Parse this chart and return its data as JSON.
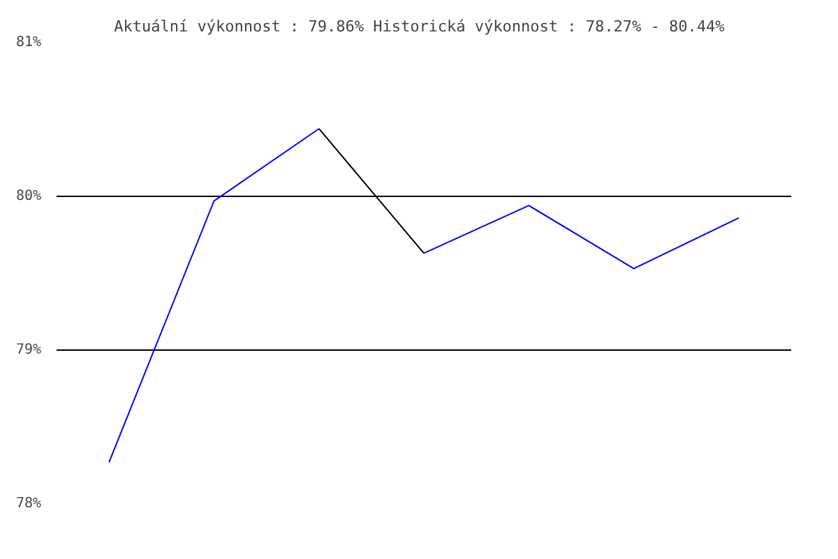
{
  "chart_data": {
    "type": "line",
    "title": "Aktuální výkonnost : 79.86%  Historická výkonnost : 78.27% - 80.44%",
    "categories": [
      null,
      null,
      null,
      null,
      null,
      null,
      null
    ],
    "series": [
      {
        "color": "#0000ff",
        "values": [
          78.27,
          79.97,
          80.44,
          null,
          null,
          null,
          null
        ]
      },
      {
        "color": "#000000",
        "values": [
          null,
          null,
          80.44,
          79.63,
          null,
          null,
          null
        ]
      },
      {
        "color": "#0000ff",
        "values": [
          null,
          null,
          null,
          79.63,
          79.94,
          79.53,
          79.86
        ]
      }
    ],
    "ylim": [
      78,
      81
    ],
    "yticks": [
      {
        "value": 78,
        "label": "78%"
      },
      {
        "value": 79,
        "label": "79%"
      },
      {
        "value": 80,
        "label": "80%"
      },
      {
        "value": 81,
        "label": "81%"
      }
    ],
    "grid": "y",
    "marker": "none",
    "line_style": "solid"
  }
}
